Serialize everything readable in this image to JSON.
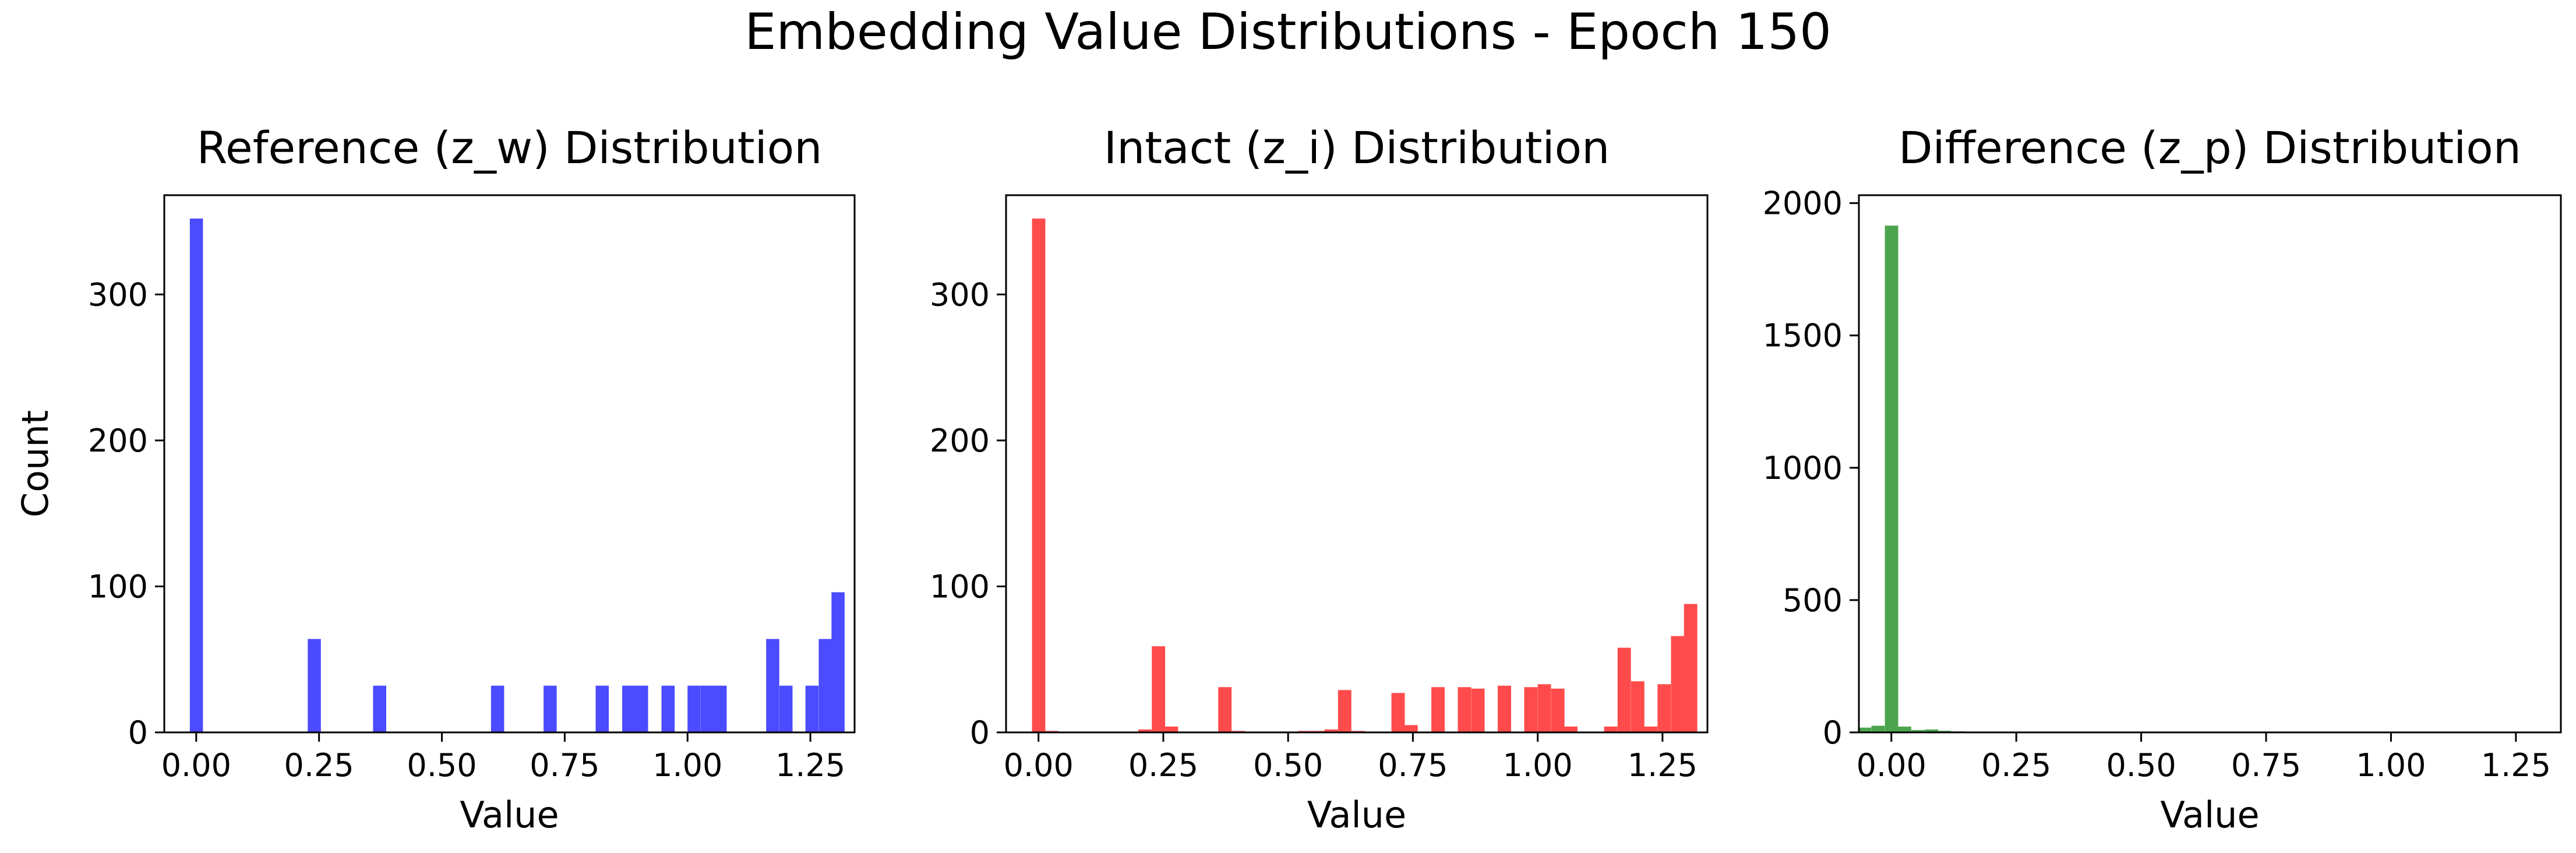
{
  "figure": {
    "title": "Embedding Value Distributions - Epoch 150"
  },
  "chart_data": [
    {
      "type": "bar",
      "title": "Reference (z_w) Distribution",
      "xlabel": "Value",
      "ylabel": "Count",
      "color": "#4b4bff",
      "xlim": [
        -0.065,
        1.34
      ],
      "ylim": [
        0,
        368
      ],
      "xticks": [
        0.0,
        0.25,
        0.5,
        0.75,
        1.0,
        1.25
      ],
      "xtick_labels": [
        "0.00",
        "0.25",
        "0.50",
        "0.75",
        "1.00",
        "1.25"
      ],
      "yticks": [
        0,
        100,
        200,
        300
      ],
      "ytick_labels": [
        "0",
        "100",
        "200",
        "300"
      ],
      "bin_width": 0.0267,
      "bins": [
        {
          "x0": -0.013,
          "value": 352
        },
        {
          "x0": 0.227,
          "value": 64
        },
        {
          "x0": 0.36,
          "value": 32
        },
        {
          "x0": 0.6,
          "value": 32
        },
        {
          "x0": 0.707,
          "value": 32
        },
        {
          "x0": 0.813,
          "value": 32
        },
        {
          "x0": 0.867,
          "value": 32
        },
        {
          "x0": 0.893,
          "value": 32
        },
        {
          "x0": 0.947,
          "value": 32
        },
        {
          "x0": 1.0,
          "value": 32
        },
        {
          "x0": 1.027,
          "value": 32
        },
        {
          "x0": 1.053,
          "value": 32
        },
        {
          "x0": 1.16,
          "value": 64
        },
        {
          "x0": 1.187,
          "value": 32
        },
        {
          "x0": 1.24,
          "value": 32
        },
        {
          "x0": 1.267,
          "value": 64
        },
        {
          "x0": 1.293,
          "value": 96
        }
      ]
    },
    {
      "type": "bar",
      "title": "Intact (z_i) Distribution",
      "xlabel": "Value",
      "ylabel": "",
      "color": "#ff4b4b",
      "xlim": [
        -0.065,
        1.34
      ],
      "ylim": [
        0,
        368
      ],
      "xticks": [
        0.0,
        0.25,
        0.5,
        0.75,
        1.0,
        1.25
      ],
      "xtick_labels": [
        "0.00",
        "0.25",
        "0.50",
        "0.75",
        "1.00",
        "1.25"
      ],
      "yticks": [
        0,
        100,
        200,
        300
      ],
      "ytick_labels": [
        "0",
        "100",
        "200",
        "300"
      ],
      "bin_width": 0.0267,
      "bins": [
        {
          "x0": -0.013,
          "value": 352
        },
        {
          "x0": 0.013,
          "value": 1
        },
        {
          "x0": 0.2,
          "value": 2
        },
        {
          "x0": 0.227,
          "value": 59
        },
        {
          "x0": 0.253,
          "value": 4
        },
        {
          "x0": 0.36,
          "value": 31
        },
        {
          "x0": 0.387,
          "value": 1
        },
        {
          "x0": 0.52,
          "value": 1
        },
        {
          "x0": 0.547,
          "value": 1
        },
        {
          "x0": 0.573,
          "value": 2
        },
        {
          "x0": 0.6,
          "value": 29
        },
        {
          "x0": 0.627,
          "value": 1
        },
        {
          "x0": 0.707,
          "value": 27
        },
        {
          "x0": 0.733,
          "value": 5
        },
        {
          "x0": 0.787,
          "value": 31
        },
        {
          "x0": 0.84,
          "value": 31
        },
        {
          "x0": 0.867,
          "value": 30
        },
        {
          "x0": 0.92,
          "value": 32
        },
        {
          "x0": 0.973,
          "value": 31
        },
        {
          "x0": 1.0,
          "value": 33
        },
        {
          "x0": 1.027,
          "value": 30
        },
        {
          "x0": 1.053,
          "value": 4
        },
        {
          "x0": 1.133,
          "value": 4
        },
        {
          "x0": 1.16,
          "value": 58
        },
        {
          "x0": 1.187,
          "value": 35
        },
        {
          "x0": 1.213,
          "value": 4
        },
        {
          "x0": 1.24,
          "value": 33
        },
        {
          "x0": 1.267,
          "value": 66
        },
        {
          "x0": 1.293,
          "value": 88
        }
      ]
    },
    {
      "type": "bar",
      "title": "Difference (z_p) Distribution",
      "xlabel": "Value",
      "ylabel": "",
      "color": "#4ca44c",
      "xlim": [
        -0.065,
        1.34
      ],
      "ylim": [
        0,
        2030
      ],
      "xticks": [
        0.0,
        0.25,
        0.5,
        0.75,
        1.0,
        1.25
      ],
      "xtick_labels": [
        "0.00",
        "0.25",
        "0.50",
        "0.75",
        "1.00",
        "1.25"
      ],
      "yticks": [
        0,
        500,
        1000,
        1500,
        2000
      ],
      "ytick_labels": [
        "0",
        "500",
        "1000",
        "1500",
        "2000"
      ],
      "bin_width": 0.0267,
      "bins": [
        {
          "x0": -0.067,
          "value": 18
        },
        {
          "x0": -0.04,
          "value": 25
        },
        {
          "x0": -0.013,
          "value": 1915
        },
        {
          "x0": 0.013,
          "value": 22
        },
        {
          "x0": 0.04,
          "value": 9
        },
        {
          "x0": 0.067,
          "value": 11
        },
        {
          "x0": 0.093,
          "value": 6
        },
        {
          "x0": 0.12,
          "value": 4
        },
        {
          "x0": 0.147,
          "value": 3
        },
        {
          "x0": 0.173,
          "value": 2
        },
        {
          "x0": 0.2,
          "value": 1
        }
      ]
    }
  ]
}
